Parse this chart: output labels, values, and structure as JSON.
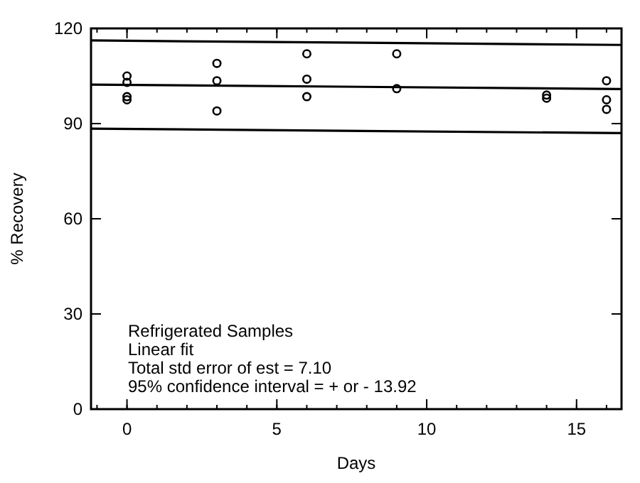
{
  "chart_data": {
    "type": "scatter",
    "xlabel": "Days",
    "ylabel": "% Recovery",
    "xlim": [
      -1.2,
      16.5
    ],
    "ylim": [
      0,
      120
    ],
    "xticks": [
      0,
      5,
      10,
      15
    ],
    "yticks": [
      0,
      30,
      60,
      90,
      120
    ],
    "marker": "circle",
    "grid": false,
    "series": [
      {
        "color": "#000000",
        "x": [
          0,
          0,
          0,
          0,
          3,
          3,
          3,
          6,
          6,
          6,
          9,
          9,
          14,
          14,
          16,
          16,
          16
        ],
        "values": [
          105,
          103,
          98.5,
          97.5,
          109,
          103.5,
          94,
          112,
          104,
          98.5,
          112,
          101,
          99,
          98,
          103.5,
          97.5,
          94.5
        ]
      },
      {
        "type": "line",
        "color": "#000000",
        "marker": "none",
        "x": [
          -1.2,
          16.5
        ],
        "values": [
          116.2,
          114.8
        ]
      },
      {
        "type": "line",
        "color": "#000000",
        "marker": "none",
        "x": [
          -1.2,
          16.5
        ],
        "values": [
          102.3,
          100.9
        ]
      },
      {
        "type": "line",
        "color": "#000000",
        "marker": "none",
        "x": [
          -1.2,
          16.5
        ],
        "values": [
          88.4,
          87
        ]
      }
    ],
    "annotations": [
      "Refrigerated Samples",
      "Linear fit",
      "Total std error of est = 7.10",
      "95% confidence interval = + or - 13.92"
    ]
  }
}
